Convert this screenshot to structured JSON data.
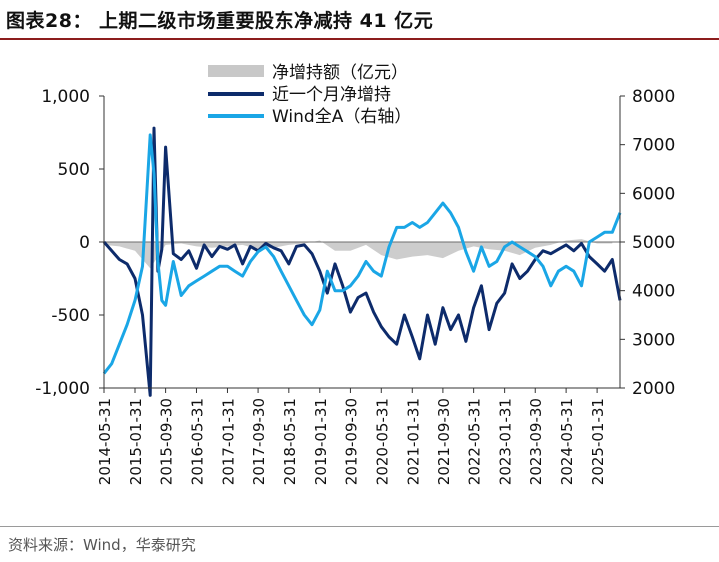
{
  "header": {
    "title": "图表28：   上期二级市场重要股东净减持 41 亿元"
  },
  "footer": {
    "source": "资料来源：Wind，华泰研究"
  },
  "chart_data": {
    "type": "area+line",
    "legend_position": "top-center",
    "grid": false,
    "y_left": {
      "range": [
        -1000,
        1000
      ],
      "ticks": [
        1000,
        500,
        0,
        -500,
        -1000
      ],
      "tick_labels": [
        "1,000",
        "500",
        "0",
        "-500",
        "-1,000"
      ]
    },
    "y_right": {
      "range": [
        2000,
        8000
      ],
      "ticks": [
        8000,
        7000,
        6000,
        5000,
        4000,
        3000,
        2000
      ],
      "tick_labels": [
        "8000",
        "7000",
        "6000",
        "5000",
        "4000",
        "3000",
        "2000"
      ]
    },
    "x_ticks": [
      "2014-05-31",
      "2015-01-31",
      "2015-09-30",
      "2016-05-31",
      "2017-01-31",
      "2017-09-30",
      "2018-05-31",
      "2019-01-31",
      "2019-09-30",
      "2020-05-31",
      "2021-01-31",
      "2021-09-30",
      "2022-05-31",
      "2023-01-31",
      "2023-09-30",
      "2024-05-31",
      "2025-01-31"
    ],
    "series": [
      {
        "name": "净增持额（亿元）",
        "type": "area",
        "axis": "left",
        "color": "#c8c8c8",
        "x": [
          "2014-05-31",
          "2014-09-30",
          "2015-01-31",
          "2015-05-31",
          "2015-09-30",
          "2016-01-31",
          "2016-05-31",
          "2016-09-30",
          "2017-01-31",
          "2017-05-31",
          "2017-09-30",
          "2018-01-31",
          "2018-05-31",
          "2018-09-30",
          "2019-01-31",
          "2019-05-31",
          "2019-09-30",
          "2020-01-31",
          "2020-05-31",
          "2020-09-30",
          "2021-01-31",
          "2021-05-31",
          "2021-09-30",
          "2022-01-31",
          "2022-05-31",
          "2022-09-30",
          "2023-01-31",
          "2023-05-31",
          "2023-09-30",
          "2024-01-31",
          "2024-05-31",
          "2024-09-30",
          "2025-01-31",
          "2025-05-31"
        ],
        "values": [
          -20,
          -30,
          -60,
          -180,
          -20,
          -10,
          -30,
          -40,
          -30,
          -20,
          -50,
          -40,
          -20,
          -10,
          10,
          -60,
          -60,
          -20,
          -90,
          -120,
          -100,
          -90,
          -110,
          -60,
          -30,
          -50,
          -60,
          -90,
          -40,
          -20,
          10,
          20,
          -10,
          -10
        ]
      },
      {
        "name": "近一个月净增持",
        "type": "line",
        "axis": "left",
        "color": "#0d2b6b",
        "x": [
          "2014-05-31",
          "2014-07-31",
          "2014-09-30",
          "2014-11-30",
          "2015-01-31",
          "2015-03-31",
          "2015-05-31",
          "2015-06-30",
          "2015-07-31",
          "2015-08-31",
          "2015-09-30",
          "2015-11-30",
          "2016-01-31",
          "2016-03-31",
          "2016-05-31",
          "2016-07-31",
          "2016-09-30",
          "2016-11-30",
          "2017-01-31",
          "2017-03-31",
          "2017-05-31",
          "2017-07-31",
          "2017-09-30",
          "2017-11-30",
          "2018-01-31",
          "2018-03-31",
          "2018-05-31",
          "2018-07-31",
          "2018-09-30",
          "2018-11-30",
          "2019-01-31",
          "2019-03-31",
          "2019-05-31",
          "2019-07-31",
          "2019-09-30",
          "2019-11-30",
          "2020-01-31",
          "2020-03-31",
          "2020-05-31",
          "2020-07-31",
          "2020-09-30",
          "2020-11-30",
          "2021-01-31",
          "2021-03-31",
          "2021-05-31",
          "2021-07-31",
          "2021-09-30",
          "2021-11-30",
          "2022-01-31",
          "2022-03-31",
          "2022-05-31",
          "2022-07-31",
          "2022-09-30",
          "2022-11-30",
          "2023-01-31",
          "2023-03-31",
          "2023-05-31",
          "2023-07-31",
          "2023-09-30",
          "2023-11-30",
          "2024-01-31",
          "2024-03-31",
          "2024-05-31",
          "2024-07-31",
          "2024-09-30",
          "2024-11-30",
          "2025-01-31",
          "2025-03-31",
          "2025-05-31",
          "2025-07-31"
        ],
        "values": [
          0,
          -60,
          -120,
          -150,
          -250,
          -500,
          -1050,
          780,
          -200,
          -50,
          650,
          -80,
          -120,
          -60,
          -180,
          -20,
          -100,
          -30,
          -50,
          -20,
          -150,
          -30,
          -60,
          -10,
          -40,
          -60,
          -150,
          -30,
          -20,
          -80,
          -200,
          -350,
          -150,
          -300,
          -480,
          -380,
          -350,
          -480,
          -580,
          -650,
          -700,
          -500,
          -650,
          -800,
          -500,
          -700,
          -450,
          -600,
          -500,
          -680,
          -450,
          -300,
          -600,
          -420,
          -350,
          -150,
          -250,
          -200,
          -120,
          -60,
          -80,
          -50,
          -20,
          -60,
          -10,
          -100,
          -150,
          -200,
          -120,
          -400
        ]
      },
      {
        "name": "Wind全A（右轴）",
        "type": "line",
        "axis": "right",
        "color": "#1aa6e6",
        "x": [
          "2014-05-31",
          "2014-07-31",
          "2014-09-30",
          "2014-11-30",
          "2015-01-31",
          "2015-03-31",
          "2015-05-31",
          "2015-06-30",
          "2015-07-31",
          "2015-08-31",
          "2015-09-30",
          "2015-11-30",
          "2016-01-31",
          "2016-03-31",
          "2016-05-31",
          "2016-07-31",
          "2016-09-30",
          "2016-11-30",
          "2017-01-31",
          "2017-03-31",
          "2017-05-31",
          "2017-07-31",
          "2017-09-30",
          "2017-11-30",
          "2018-01-31",
          "2018-03-31",
          "2018-05-31",
          "2018-07-31",
          "2018-09-30",
          "2018-11-30",
          "2019-01-31",
          "2019-03-31",
          "2019-05-31",
          "2019-07-31",
          "2019-09-30",
          "2019-11-30",
          "2020-01-31",
          "2020-03-31",
          "2020-05-31",
          "2020-07-31",
          "2020-09-30",
          "2020-11-30",
          "2021-01-31",
          "2021-03-31",
          "2021-05-31",
          "2021-07-31",
          "2021-09-30",
          "2021-11-30",
          "2022-01-31",
          "2022-03-31",
          "2022-05-31",
          "2022-07-31",
          "2022-09-30",
          "2022-11-30",
          "2023-01-31",
          "2023-03-31",
          "2023-05-31",
          "2023-07-31",
          "2023-09-30",
          "2023-11-30",
          "2024-01-31",
          "2024-03-31",
          "2024-05-31",
          "2024-07-31",
          "2024-09-30",
          "2024-11-30",
          "2025-01-31",
          "2025-03-31",
          "2025-05-31",
          "2025-07-31"
        ],
        "values": [
          2300,
          2500,
          2900,
          3300,
          3800,
          4500,
          7200,
          6400,
          4600,
          3800,
          3700,
          4600,
          3900,
          4100,
          4200,
          4300,
          4400,
          4500,
          4500,
          4400,
          4300,
          4600,
          4800,
          4900,
          4700,
          4400,
          4100,
          3800,
          3500,
          3300,
          3600,
          4400,
          4000,
          4000,
          4100,
          4300,
          4600,
          4400,
          4300,
          4900,
          5300,
          5300,
          5400,
          5300,
          5400,
          5600,
          5800,
          5600,
          5300,
          4800,
          4400,
          4900,
          4500,
          4600,
          4900,
          5000,
          4900,
          4800,
          4700,
          4500,
          4100,
          4400,
          4500,
          4400,
          4100,
          5000,
          5100,
          5200,
          5200,
          5600
        ]
      }
    ]
  }
}
